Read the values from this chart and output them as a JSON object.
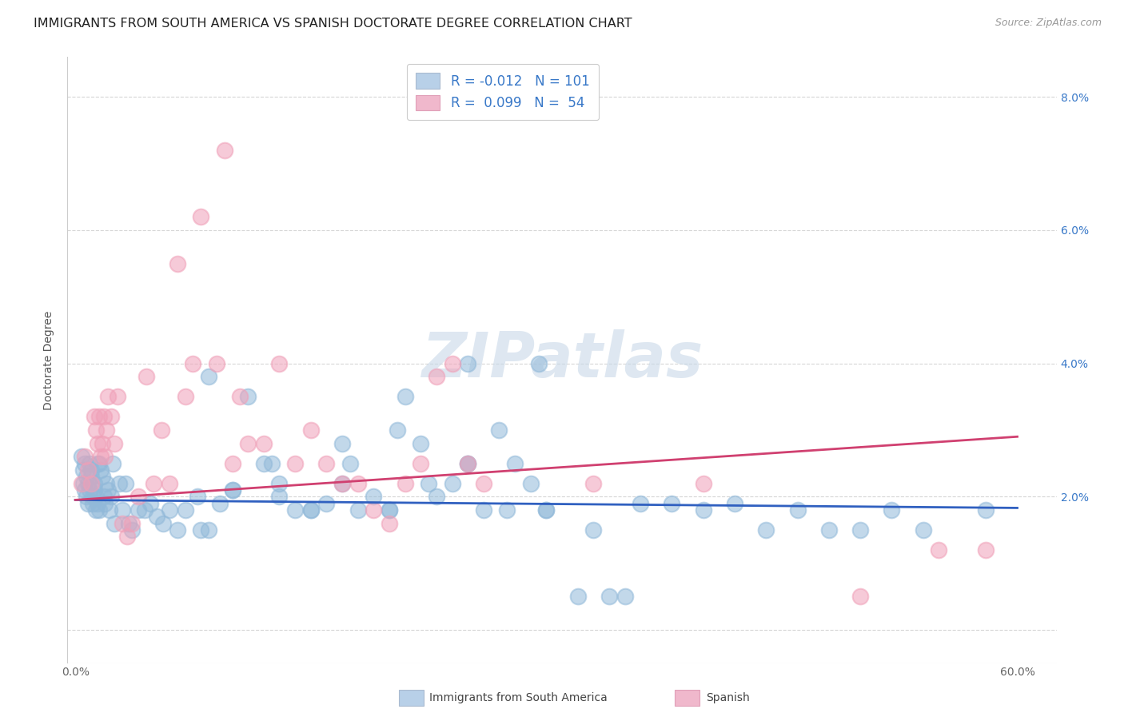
{
  "title": "IMMIGRANTS FROM SOUTH AMERICA VS SPANISH DOCTORATE DEGREE CORRELATION CHART",
  "source": "Source: ZipAtlas.com",
  "ylabel": "Doctorate Degree",
  "y_ticks": [
    0.0,
    0.02,
    0.04,
    0.06,
    0.08
  ],
  "y_tick_labels_right": [
    "",
    "2.0%",
    "4.0%",
    "6.0%",
    "8.0%"
  ],
  "x_tick_positions": [
    0.0,
    0.1,
    0.2,
    0.3,
    0.4,
    0.5,
    0.6
  ],
  "x_tick_labels": [
    "0.0%",
    "",
    "",
    "",
    "",
    "",
    "60.0%"
  ],
  "watermark": "ZIPatlas",
  "blue_color": "#91b9d9",
  "pink_color": "#f0a0b8",
  "blue_line_color": "#3060c0",
  "pink_line_color": "#d04070",
  "legend_text_color": "#3878c8",
  "legend_r1": "R = -0.012   N = 101",
  "legend_r2": "R =  0.099   N =  54",
  "blue_scatter_x": [
    0.004,
    0.005,
    0.005,
    0.006,
    0.006,
    0.007,
    0.007,
    0.008,
    0.008,
    0.009,
    0.009,
    0.01,
    0.01,
    0.011,
    0.011,
    0.012,
    0.012,
    0.013,
    0.013,
    0.014,
    0.014,
    0.015,
    0.015,
    0.016,
    0.017,
    0.018,
    0.019,
    0.02,
    0.021,
    0.022,
    0.023,
    0.024,
    0.025,
    0.028,
    0.03,
    0.032,
    0.034,
    0.036,
    0.04,
    0.044,
    0.048,
    0.052,
    0.056,
    0.06,
    0.065,
    0.07,
    0.078,
    0.085,
    0.092,
    0.1,
    0.11,
    0.12,
    0.13,
    0.14,
    0.15,
    0.16,
    0.17,
    0.18,
    0.19,
    0.2,
    0.21,
    0.22,
    0.23,
    0.24,
    0.25,
    0.26,
    0.27,
    0.28,
    0.29,
    0.3,
    0.32,
    0.35,
    0.38,
    0.42,
    0.46,
    0.5,
    0.54,
    0.58,
    0.085,
    0.13,
    0.17,
    0.205,
    0.25,
    0.295,
    0.34,
    0.08,
    0.1,
    0.125,
    0.15,
    0.175,
    0.2,
    0.225,
    0.25,
    0.275,
    0.3,
    0.33,
    0.36,
    0.4,
    0.44,
    0.48,
    0.52
  ],
  "blue_scatter_y": [
    0.026,
    0.024,
    0.022,
    0.025,
    0.021,
    0.023,
    0.02,
    0.022,
    0.019,
    0.021,
    0.025,
    0.024,
    0.023,
    0.02,
    0.019,
    0.022,
    0.021,
    0.018,
    0.02,
    0.025,
    0.019,
    0.018,
    0.025,
    0.024,
    0.023,
    0.02,
    0.019,
    0.022,
    0.021,
    0.018,
    0.02,
    0.025,
    0.016,
    0.022,
    0.018,
    0.022,
    0.016,
    0.015,
    0.018,
    0.018,
    0.019,
    0.017,
    0.016,
    0.018,
    0.015,
    0.018,
    0.02,
    0.015,
    0.019,
    0.021,
    0.035,
    0.025,
    0.02,
    0.018,
    0.018,
    0.019,
    0.022,
    0.018,
    0.02,
    0.018,
    0.035,
    0.028,
    0.02,
    0.022,
    0.025,
    0.018,
    0.03,
    0.025,
    0.022,
    0.018,
    0.005,
    0.005,
    0.019,
    0.019,
    0.018,
    0.015,
    0.015,
    0.018,
    0.038,
    0.022,
    0.028,
    0.03,
    0.04,
    0.04,
    0.005,
    0.015,
    0.021,
    0.025,
    0.018,
    0.025,
    0.018,
    0.022,
    0.025,
    0.018,
    0.018,
    0.015,
    0.019,
    0.018,
    0.015,
    0.015,
    0.018
  ],
  "pink_scatter_x": [
    0.004,
    0.006,
    0.008,
    0.01,
    0.012,
    0.013,
    0.014,
    0.015,
    0.016,
    0.017,
    0.018,
    0.019,
    0.02,
    0.021,
    0.023,
    0.025,
    0.027,
    0.03,
    0.033,
    0.036,
    0.04,
    0.045,
    0.05,
    0.055,
    0.06,
    0.065,
    0.07,
    0.075,
    0.08,
    0.09,
    0.095,
    0.1,
    0.105,
    0.11,
    0.12,
    0.13,
    0.14,
    0.15,
    0.16,
    0.17,
    0.18,
    0.19,
    0.2,
    0.21,
    0.22,
    0.23,
    0.24,
    0.25,
    0.26,
    0.33,
    0.4,
    0.5,
    0.55,
    0.58
  ],
  "pink_scatter_y": [
    0.022,
    0.026,
    0.024,
    0.022,
    0.032,
    0.03,
    0.028,
    0.032,
    0.026,
    0.028,
    0.032,
    0.026,
    0.03,
    0.035,
    0.032,
    0.028,
    0.035,
    0.016,
    0.014,
    0.016,
    0.02,
    0.038,
    0.022,
    0.03,
    0.022,
    0.055,
    0.035,
    0.04,
    0.062,
    0.04,
    0.072,
    0.025,
    0.035,
    0.028,
    0.028,
    0.04,
    0.025,
    0.03,
    0.025,
    0.022,
    0.022,
    0.018,
    0.016,
    0.022,
    0.025,
    0.038,
    0.04,
    0.025,
    0.022,
    0.022,
    0.022,
    0.005,
    0.012,
    0.012
  ],
  "blue_line_x": [
    0.0,
    0.6
  ],
  "blue_line_y": [
    0.0195,
    0.0183
  ],
  "pink_line_x": [
    0.0,
    0.6
  ],
  "pink_line_y": [
    0.0195,
    0.029
  ],
  "xlim": [
    -0.005,
    0.625
  ],
  "ylim": [
    -0.005,
    0.086
  ],
  "title_fontsize": 11.5,
  "source_fontsize": 9,
  "axis_label_fontsize": 10,
  "tick_fontsize": 10,
  "scatter_size": 200,
  "scatter_alpha": 0.55,
  "scatter_linewidth": 1.5
}
